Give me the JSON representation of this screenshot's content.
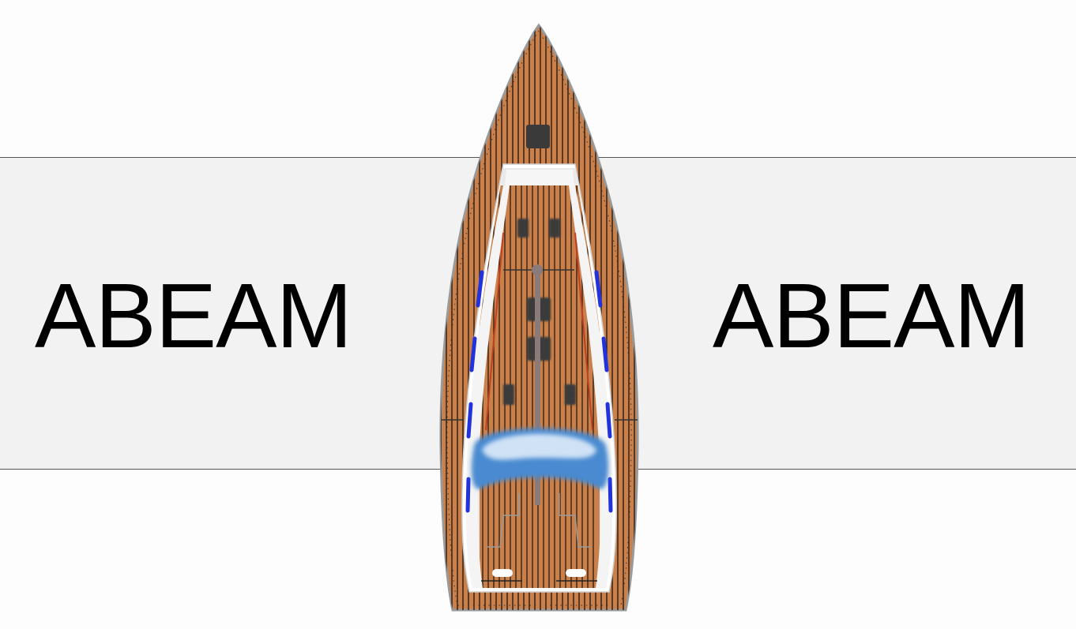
{
  "labels": {
    "left": "ABEAM",
    "right": "ABEAM"
  },
  "colors": {
    "band": "#f2f2f2",
    "band_border": "#555555",
    "deck_wood": "#c9804a",
    "deck_seam": "#2b1a10",
    "hull_outline": "#9a9a9a",
    "cabin_white": "#ffffff",
    "window_blue": "#2233dd",
    "sheet_red": "#c04020",
    "dodger_blue": "#4a8ad0",
    "hatch_dark": "#3a3a3a",
    "mast_grey": "#8a7a7a"
  },
  "icons": {
    "boat": "sailboat-top-view-icon"
  }
}
